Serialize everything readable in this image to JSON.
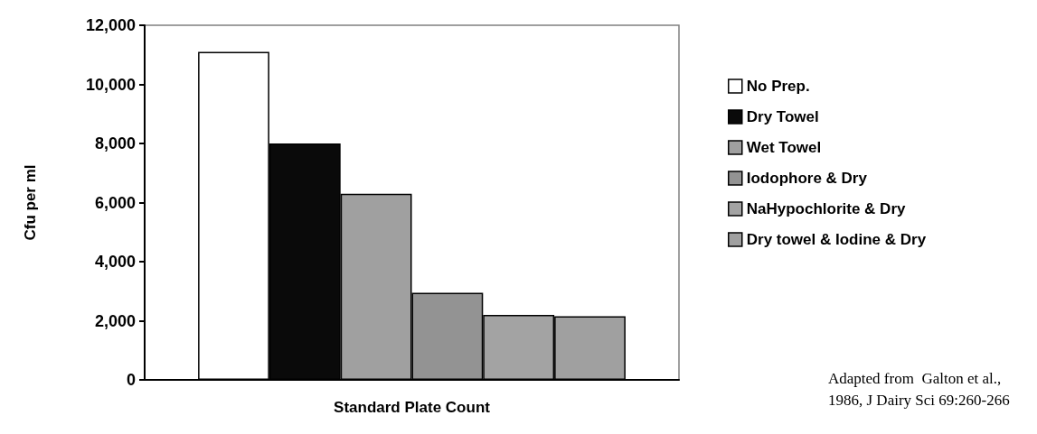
{
  "chart_data": {
    "type": "bar",
    "ylabel": "Cfu per ml",
    "categories": [
      "Standard Plate Count"
    ],
    "series": [
      {
        "name": "No Prep.",
        "color": "#ffffff",
        "values": [
          11100
        ]
      },
      {
        "name": "Dry Towel",
        "color": "#0a0a0a",
        "values": [
          8000
        ]
      },
      {
        "name": "Wet Towel",
        "color": "#a0a0a0",
        "values": [
          6300
        ]
      },
      {
        "name": "Iodophore & Dry",
        "color": "#939393",
        "values": [
          2950
        ]
      },
      {
        "name": "NaHypochlorite & Dry",
        "color": "#a3a3a3",
        "values": [
          2200
        ]
      },
      {
        "name": "Dry towel & Iodine & Dry",
        "color": "#a0a0a0",
        "values": [
          2150
        ]
      }
    ],
    "ylim": [
      0,
      12000
    ],
    "yticks": [
      0,
      {
        "value": 2000,
        "label": "2,000"
      },
      {
        "value": 4000,
        "label": "4,000"
      },
      {
        "value": 6000,
        "label": "6,000"
      },
      {
        "value": 8000,
        "label": "8,000"
      },
      {
        "value": 10000,
        "label": "10,000"
      },
      {
        "value": 12000,
        "label": "12,000"
      }
    ],
    "grid": false,
    "legend": "right",
    "annotations": [
      "Adapted from  Galton et al., 1986, J Dairy Sci 69:260-266"
    ]
  }
}
